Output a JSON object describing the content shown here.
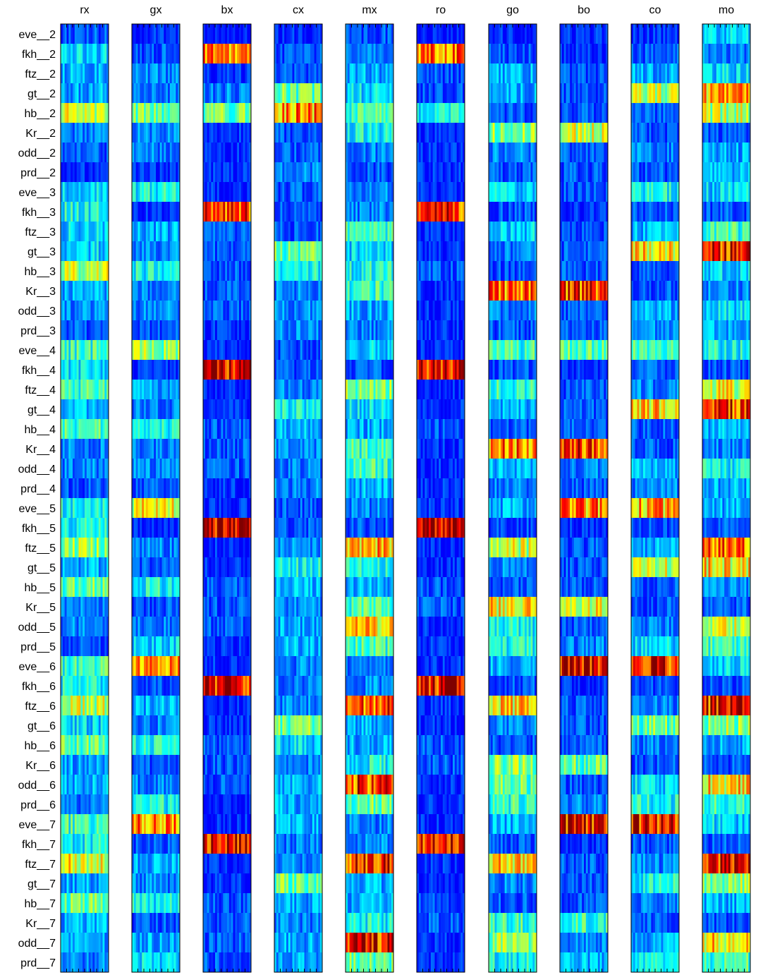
{
  "chart_data": {
    "type": "heatmap",
    "colormap": "jet",
    "colormap_stops": [
      "#00008f",
      "#0000ff",
      "#00ffff",
      "#ffff00",
      "#ff0000",
      "#800000"
    ],
    "columns": [
      "rx",
      "gx",
      "bx",
      "cx",
      "mx",
      "ro",
      "go",
      "bo",
      "co",
      "mo"
    ],
    "rows": [
      "eve__2",
      "fkh__2",
      "ftz__2",
      "gt__2",
      "hb__2",
      "Kr__2",
      "odd__2",
      "prd__2",
      "eve__3",
      "fkh__3",
      "ftz__3",
      "gt__3",
      "hb__3",
      "Kr__3",
      "odd__3",
      "prd__3",
      "eve__4",
      "fkh__4",
      "ftz__4",
      "gt__4",
      "hb__4",
      "Kr__4",
      "odd__4",
      "prd__4",
      "eve__5",
      "fkh__5",
      "ftz__5",
      "gt__5",
      "hb__5",
      "Kr__5",
      "odd__5",
      "prd__5",
      "eve__6",
      "fkh__6",
      "ftz__6",
      "gt__6",
      "hb__6",
      "Kr__6",
      "odd__6",
      "prd__6",
      "eve__7",
      "fkh__7",
      "ftz__7",
      "gt__7",
      "hb__7",
      "Kr__7",
      "odd__7",
      "prd__7"
    ],
    "approx_row_intensity": {
      "rx": [
        0.1,
        0.25,
        0.2,
        0.2,
        0.55,
        0.15,
        0.1,
        0.05,
        0.25,
        0.3,
        0.25,
        0.25,
        0.5,
        0.2,
        0.15,
        0.1,
        0.35,
        0.25,
        0.35,
        0.2,
        0.35,
        0.15,
        0.15,
        0.1,
        0.3,
        0.3,
        0.45,
        0.2,
        0.4,
        0.15,
        0.15,
        0.1,
        0.35,
        0.3,
        0.5,
        0.25,
        0.4,
        0.2,
        0.2,
        0.15,
        0.35,
        0.3,
        0.55,
        0.2,
        0.4,
        0.2,
        0.2,
        0.15
      ],
      "gx": [
        0.05,
        0.1,
        0.15,
        0.15,
        0.4,
        0.15,
        0.15,
        0.05,
        0.3,
        0.05,
        0.2,
        0.15,
        0.3,
        0.15,
        0.15,
        0.1,
        0.45,
        0.05,
        0.2,
        0.15,
        0.3,
        0.15,
        0.15,
        0.1,
        0.55,
        0.05,
        0.15,
        0.1,
        0.3,
        0.1,
        0.15,
        0.25,
        0.7,
        0.1,
        0.2,
        0.15,
        0.3,
        0.1,
        0.15,
        0.3,
        0.7,
        0.1,
        0.2,
        0.15,
        0.3,
        0.1,
        0.2,
        0.25
      ],
      "bx": [
        0.02,
        0.75,
        0.05,
        0.15,
        0.4,
        0.05,
        0.05,
        0.05,
        0.05,
        0.8,
        0.1,
        0.1,
        0.1,
        0.1,
        0.1,
        0.05,
        0.05,
        0.88,
        0.05,
        0.05,
        0.1,
        0.1,
        0.1,
        0.05,
        0.05,
        0.9,
        0.05,
        0.05,
        0.1,
        0.1,
        0.1,
        0.05,
        0.05,
        0.88,
        0.05,
        0.05,
        0.1,
        0.1,
        0.1,
        0.05,
        0.05,
        0.9,
        0.05,
        0.05,
        0.1,
        0.1,
        0.1,
        0.1
      ],
      "cx": [
        0.05,
        0.1,
        0.1,
        0.4,
        0.7,
        0.1,
        0.1,
        0.15,
        0.1,
        0.1,
        0.1,
        0.4,
        0.3,
        0.15,
        0.15,
        0.15,
        0.1,
        0.1,
        0.15,
        0.3,
        0.2,
        0.15,
        0.15,
        0.15,
        0.1,
        0.1,
        0.15,
        0.3,
        0.2,
        0.15,
        0.2,
        0.2,
        0.15,
        0.15,
        0.15,
        0.4,
        0.25,
        0.15,
        0.2,
        0.2,
        0.2,
        0.15,
        0.15,
        0.4,
        0.2,
        0.15,
        0.2,
        0.2
      ],
      "mx": [
        0.1,
        0.15,
        0.2,
        0.25,
        0.35,
        0.3,
        0.15,
        0.1,
        0.15,
        0.15,
        0.35,
        0.25,
        0.3,
        0.35,
        0.2,
        0.15,
        0.25,
        0.1,
        0.45,
        0.25,
        0.2,
        0.35,
        0.35,
        0.2,
        0.15,
        0.1,
        0.65,
        0.3,
        0.2,
        0.35,
        0.6,
        0.35,
        0.15,
        0.15,
        0.8,
        0.2,
        0.2,
        0.3,
        0.8,
        0.4,
        0.15,
        0.15,
        0.82,
        0.2,
        0.2,
        0.3,
        0.85,
        0.4
      ],
      "ro": [
        0.02,
        0.72,
        0.1,
        0.1,
        0.3,
        0.05,
        0.05,
        0.05,
        0.05,
        0.82,
        0.05,
        0.05,
        0.1,
        0.05,
        0.05,
        0.05,
        0.05,
        0.9,
        0.05,
        0.05,
        0.1,
        0.05,
        0.05,
        0.05,
        0.05,
        0.92,
        0.05,
        0.05,
        0.1,
        0.1,
        0.05,
        0.05,
        0.05,
        0.86,
        0.05,
        0.05,
        0.1,
        0.1,
        0.05,
        0.05,
        0.05,
        0.84,
        0.05,
        0.05,
        0.1,
        0.1,
        0.05,
        0.05
      ],
      "go": [
        0.05,
        0.1,
        0.2,
        0.2,
        0.1,
        0.45,
        0.15,
        0.1,
        0.25,
        0.1,
        0.25,
        0.15,
        0.1,
        0.72,
        0.15,
        0.1,
        0.35,
        0.1,
        0.35,
        0.2,
        0.1,
        0.72,
        0.2,
        0.15,
        0.2,
        0.1,
        0.5,
        0.15,
        0.1,
        0.6,
        0.3,
        0.3,
        0.2,
        0.1,
        0.6,
        0.15,
        0.1,
        0.45,
        0.4,
        0.35,
        0.2,
        0.1,
        0.6,
        0.15,
        0.1,
        0.35,
        0.45,
        0.3
      ],
      "bo": [
        0.05,
        0.05,
        0.1,
        0.1,
        0.1,
        0.5,
        0.1,
        0.1,
        0.1,
        0.05,
        0.1,
        0.1,
        0.1,
        0.8,
        0.1,
        0.1,
        0.4,
        0.05,
        0.1,
        0.1,
        0.1,
        0.8,
        0.15,
        0.1,
        0.7,
        0.05,
        0.1,
        0.1,
        0.1,
        0.55,
        0.1,
        0.15,
        0.85,
        0.05,
        0.1,
        0.1,
        0.1,
        0.4,
        0.1,
        0.15,
        0.85,
        0.05,
        0.1,
        0.1,
        0.1,
        0.35,
        0.15,
        0.2
      ],
      "co": [
        0.05,
        0.1,
        0.2,
        0.5,
        0.1,
        0.1,
        0.15,
        0.1,
        0.3,
        0.1,
        0.2,
        0.6,
        0.1,
        0.1,
        0.2,
        0.15,
        0.35,
        0.1,
        0.15,
        0.62,
        0.1,
        0.1,
        0.2,
        0.15,
        0.65,
        0.1,
        0.2,
        0.5,
        0.1,
        0.1,
        0.15,
        0.25,
        0.85,
        0.1,
        0.15,
        0.4,
        0.15,
        0.1,
        0.25,
        0.3,
        0.85,
        0.1,
        0.15,
        0.3,
        0.15,
        0.1,
        0.2,
        0.3
      ],
      "mo": [
        0.25,
        0.15,
        0.25,
        0.65,
        0.5,
        0.1,
        0.2,
        0.2,
        0.25,
        0.1,
        0.35,
        0.8,
        0.25,
        0.15,
        0.25,
        0.2,
        0.3,
        0.1,
        0.55,
        0.8,
        0.2,
        0.15,
        0.3,
        0.2,
        0.2,
        0.1,
        0.75,
        0.6,
        0.15,
        0.1,
        0.5,
        0.35,
        0.25,
        0.1,
        0.85,
        0.45,
        0.2,
        0.1,
        0.6,
        0.35,
        0.25,
        0.1,
        0.85,
        0.45,
        0.2,
        0.1,
        0.6,
        0.35
      ]
    }
  }
}
